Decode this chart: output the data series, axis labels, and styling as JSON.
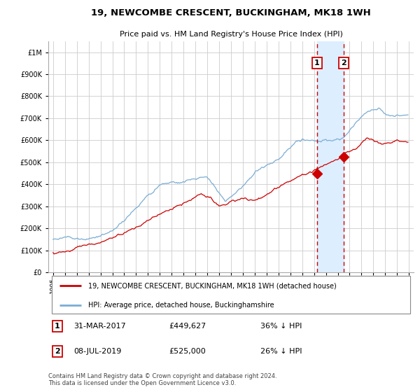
{
  "title": "19, NEWCOMBE CRESCENT, BUCKINGHAM, MK18 1WH",
  "subtitle": "Price paid vs. HM Land Registry's House Price Index (HPI)",
  "legend_line1": "19, NEWCOMBE CRESCENT, BUCKINGHAM, MK18 1WH (detached house)",
  "legend_line2": "HPI: Average price, detached house, Buckinghamshire",
  "annotation1_date": "31-MAR-2017",
  "annotation1_price": "£449,627",
  "annotation1_hpi": "36% ↓ HPI",
  "annotation2_date": "08-JUL-2019",
  "annotation2_price": "£525,000",
  "annotation2_hpi": "26% ↓ HPI",
  "footer": "Contains HM Land Registry data © Crown copyright and database right 2024.\nThis data is licensed under the Open Government Licence v3.0.",
  "red_color": "#cc0000",
  "blue_color": "#7aadd4",
  "blue_shade_color": "#ddeeff",
  "box_color": "#cc0000",
  "grid_color": "#cccccc",
  "bg_color": "#ffffff",
  "ylim": [
    0,
    1050000
  ],
  "yticks": [
    0,
    100000,
    200000,
    300000,
    400000,
    500000,
    600000,
    700000,
    800000,
    900000,
    1000000
  ],
  "ytick_labels": [
    "£0",
    "£100K",
    "£200K",
    "£300K",
    "£400K",
    "£500K",
    "£600K",
    "£700K",
    "£800K",
    "£900K",
    "£1M"
  ],
  "xlim_left": 1994.6,
  "xlim_right": 2025.4,
  "marker1_x": 2017.25,
  "marker1_y": 449627,
  "marker2_x": 2019.52,
  "marker2_y": 525000,
  "vline1_x": 2017.25,
  "vline2_x": 2019.52
}
